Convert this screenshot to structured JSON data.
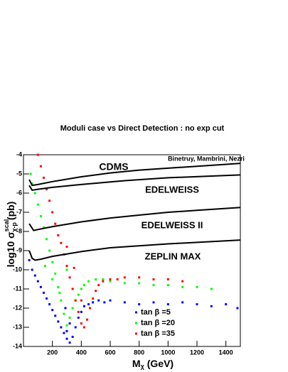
{
  "chart_data": {
    "type": "scatter",
    "title": "Moduli case vs Direct Detection : no exp cut",
    "xlabel": {
      "main": "M",
      "sub": "χ",
      "unit": "(GeV)"
    },
    "ylabel": {
      "main": "log10 σ",
      "sup": "scal",
      "sub": "χ-p",
      "unit": "(pb)"
    },
    "credit": "Binetruy, Mambrini, Nezri",
    "xlim": [
      0,
      1500
    ],
    "ylim": [
      -14,
      -4
    ],
    "xticks": [
      200,
      400,
      600,
      800,
      1000,
      1200,
      1400
    ],
    "yticks": [
      -4,
      -5,
      -6,
      -7,
      -8,
      -9,
      -10,
      -11,
      -12,
      -13,
      -14
    ],
    "curves": [
      {
        "name": "CDMS",
        "color": "#000000",
        "x": [
          40,
          60,
          100,
          200,
          400,
          600,
          800,
          1000,
          1200,
          1500
        ],
        "y": [
          -5.3,
          -5.6,
          -5.55,
          -5.4,
          -5.15,
          -4.95,
          -4.8,
          -4.7,
          -4.6,
          -4.45
        ]
      },
      {
        "name": "EDELWEISS",
        "color": "#000000",
        "x": [
          40,
          60,
          100,
          200,
          400,
          700,
          1000,
          1500
        ],
        "y": [
          -5.6,
          -5.85,
          -5.8,
          -5.7,
          -5.55,
          -5.35,
          -5.2,
          -5.05
        ]
      },
      {
        "name": "EDELWEISS II",
        "color": "#000000",
        "x": [
          40,
          70,
          100,
          200,
          400,
          600,
          800,
          1000,
          1200,
          1500
        ],
        "y": [
          -7.6,
          -7.95,
          -7.9,
          -7.75,
          -7.5,
          -7.3,
          -7.15,
          -7.0,
          -6.9,
          -6.75
        ]
      },
      {
        "name": "ZEPLIN MAX",
        "color": "#000000",
        "x": [
          40,
          60,
          80,
          120,
          200,
          400,
          600,
          800,
          1000,
          1500
        ],
        "y": [
          -9.0,
          -9.4,
          -9.5,
          -9.45,
          -9.3,
          -9.05,
          -8.85,
          -8.75,
          -8.65,
          -8.45
        ]
      }
    ],
    "series": [
      {
        "name": "tan β =5",
        "color": "#0000ff",
        "x": [
          40,
          60,
          80,
          100,
          120,
          140,
          160,
          180,
          200,
          220,
          240,
          260,
          280,
          300,
          320,
          340,
          360,
          380,
          300,
          320,
          290,
          400,
          420,
          450,
          480,
          520,
          560,
          600,
          700,
          800,
          900,
          1000,
          1100,
          1200,
          1300,
          1400,
          1480
        ],
        "y": [
          -9.5,
          -10.0,
          -10.3,
          -10.6,
          -10.9,
          -11.2,
          -11.5,
          -11.8,
          -12.1,
          -12.4,
          -12.7,
          -13.0,
          -13.3,
          -13.6,
          -13.8,
          -13.5,
          -13.0,
          -12.5,
          -13.2,
          -12.8,
          -12.0,
          -12.2,
          -11.9,
          -11.8,
          -11.7,
          -11.6,
          -11.7,
          -11.6,
          -11.7,
          -11.8,
          -11.7,
          -11.8,
          -11.7,
          -11.8,
          -11.9,
          -11.8,
          -12.0
        ]
      },
      {
        "name": "tan β =20",
        "color": "#00ff00",
        "x": [
          50,
          60,
          80,
          100,
          120,
          140,
          160,
          180,
          200,
          220,
          240,
          260,
          280,
          300,
          320,
          340,
          360,
          380,
          400,
          420,
          450,
          500,
          550,
          600,
          700,
          800,
          900,
          1000,
          1100,
          1200,
          1300,
          150,
          200,
          250,
          300
        ],
        "y": [
          -5.0,
          -5.5,
          -6.0,
          -6.6,
          -7.2,
          -7.8,
          -8.4,
          -9.0,
          -9.6,
          -10.2,
          -10.9,
          -11.6,
          -12.3,
          -12.9,
          -12.5,
          -12.0,
          -11.6,
          -11.3,
          -11.0,
          -10.8,
          -10.6,
          -10.5,
          -10.5,
          -10.6,
          -10.7,
          -10.7,
          -10.8,
          -10.8,
          -10.9,
          -10.9,
          -11.0,
          -9.8,
          -10.5,
          -11.2,
          -10.0
        ]
      },
      {
        "name": "tan β =35",
        "color": "#ff0000",
        "x": [
          100,
          120,
          140,
          160,
          180,
          200,
          220,
          240,
          260,
          280,
          300,
          320,
          340,
          360,
          380,
          400,
          420,
          440,
          460,
          480,
          500,
          520,
          550,
          600,
          650,
          700,
          800,
          900,
          1000,
          1100,
          300,
          350,
          400
        ],
        "y": [
          -4.0,
          -4.6,
          -5.2,
          -5.8,
          -6.4,
          -7.0,
          -7.6,
          -8.2,
          -8.6,
          -9.2,
          -9.8,
          -10.4,
          -11.0,
          -11.6,
          -12.2,
          -12.8,
          -13.0,
          -12.6,
          -12.0,
          -11.5,
          -11.1,
          -10.8,
          -10.6,
          -10.5,
          -10.5,
          -10.4,
          -10.4,
          -10.5,
          -10.5,
          -10.6,
          -8.8,
          -9.9,
          -11.6
        ]
      }
    ]
  }
}
